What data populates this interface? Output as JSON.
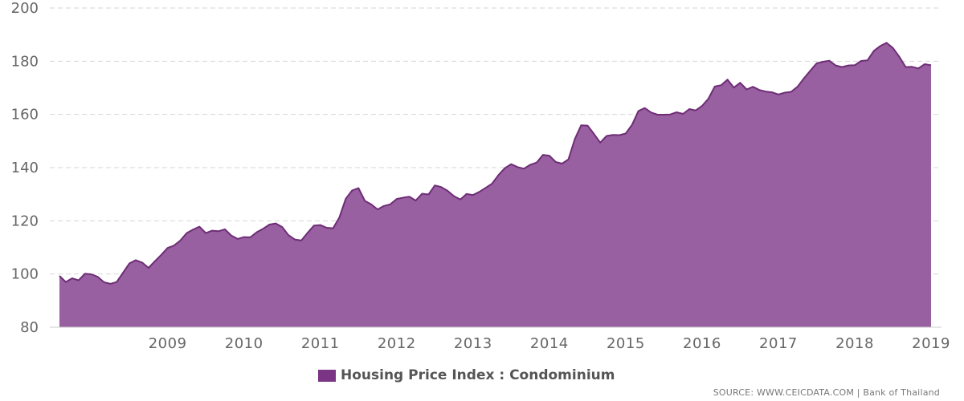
{
  "chart_data": {
    "type": "area",
    "start": "2008-02",
    "frequency": "monthly",
    "x_tick_labels": [
      "2009",
      "2010",
      "2011",
      "2012",
      "2013",
      "2014",
      "2015",
      "2016",
      "2017",
      "2018",
      "2019"
    ],
    "ylim": [
      80,
      200
    ],
    "y_ticks": [
      80,
      100,
      120,
      140,
      160,
      180,
      200
    ],
    "grid": "horizontal dashed",
    "legend_position": "bottom-center",
    "series": [
      {
        "name": "Housing Price Index : Condominium",
        "color": "#9860a0",
        "line_color": "#6e2d76",
        "values": [
          99.3,
          97.0,
          98.4,
          97.6,
          100.1,
          99.9,
          99.0,
          96.9,
          96.3,
          97.0,
          100.5,
          104.0,
          105.2,
          104.3,
          102.3,
          104.8,
          107.2,
          109.8,
          110.7,
          112.6,
          115.4,
          116.7,
          117.8,
          115.4,
          116.3,
          116.1,
          116.8,
          114.5,
          113.2,
          113.9,
          113.8,
          115.7,
          117.0,
          118.6,
          119.0,
          117.7,
          114.6,
          113.0,
          112.6,
          115.5,
          118.2,
          118.4,
          117.4,
          117.2,
          121.3,
          128.3,
          131.4,
          132.3,
          127.5,
          126.2,
          124.3,
          125.6,
          126.2,
          128.2,
          128.7,
          129.1,
          127.6,
          130.2,
          129.9,
          133.3,
          132.7,
          131.3,
          129.3,
          128.0,
          130.1,
          129.7,
          130.9,
          132.4,
          134.0,
          137.2,
          139.8,
          141.3,
          140.2,
          139.6,
          141.1,
          141.9,
          144.8,
          144.5,
          142.1,
          141.5,
          143.1,
          150.7,
          155.9,
          155.8,
          152.7,
          149.4,
          151.9,
          152.3,
          152.2,
          152.8,
          156.1,
          161.3,
          162.4,
          160.7,
          159.9,
          159.9,
          160.0,
          160.8,
          160.2,
          162.0,
          161.5,
          163.2,
          165.9,
          170.5,
          171.0,
          173.1,
          170.1,
          171.9,
          169.4,
          170.4,
          169.2,
          168.6,
          168.3,
          167.5,
          168.2,
          168.5,
          170.4,
          173.5,
          176.4,
          179.2,
          179.8,
          180.2,
          178.4,
          177.8,
          178.4,
          178.5,
          180.1,
          180.3,
          183.9,
          185.7,
          186.9,
          185.0,
          181.7,
          177.8,
          177.9,
          177.3,
          178.9,
          178.5
        ]
      }
    ]
  },
  "legend": {
    "label": "Housing Price Index : Condominium",
    "color": "#7b3585"
  },
  "source": {
    "text": "SOURCE: WWW.CEICDATA.COM | Bank of Thailand"
  }
}
